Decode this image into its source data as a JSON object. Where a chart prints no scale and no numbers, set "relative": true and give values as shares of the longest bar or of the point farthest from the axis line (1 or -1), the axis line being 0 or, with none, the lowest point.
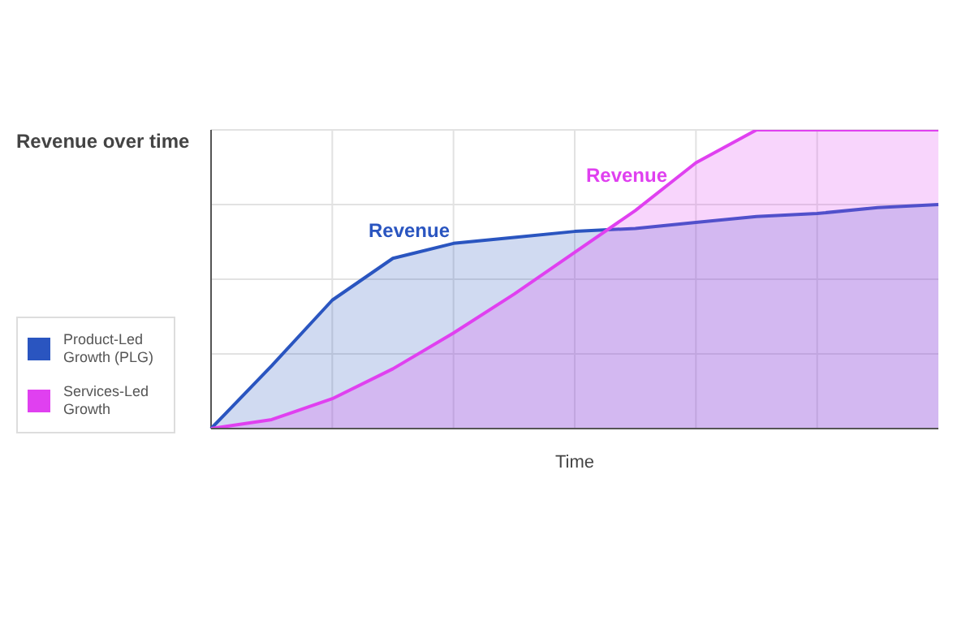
{
  "chart_data": {
    "type": "area",
    "title": "Revenue over time",
    "xlabel": "Time",
    "relative": true,
    "grid": true,
    "legend": "left",
    "categories": [
      null,
      null,
      null,
      null,
      null,
      null,
      null,
      null,
      null,
      null,
      null,
      null,
      null
    ],
    "series": [
      {
        "name": "Product-Led Growth (PLG)",
        "color": "#2a55c0",
        "values": [
          0,
          0.21,
          0.43,
          0.57,
          0.62,
          0.64,
          0.66,
          0.67,
          0.69,
          0.71,
          0.72,
          0.74,
          0.75
        ]
      },
      {
        "name": "Services-Led Growth",
        "color": "#e040f0",
        "values": [
          0,
          0.03,
          0.1,
          0.2,
          0.32,
          0.45,
          0.59,
          0.73,
          0.89,
          1,
          1,
          1,
          1
        ]
      }
    ],
    "annotations": [
      "Revenue",
      "Revenue"
    ]
  }
}
